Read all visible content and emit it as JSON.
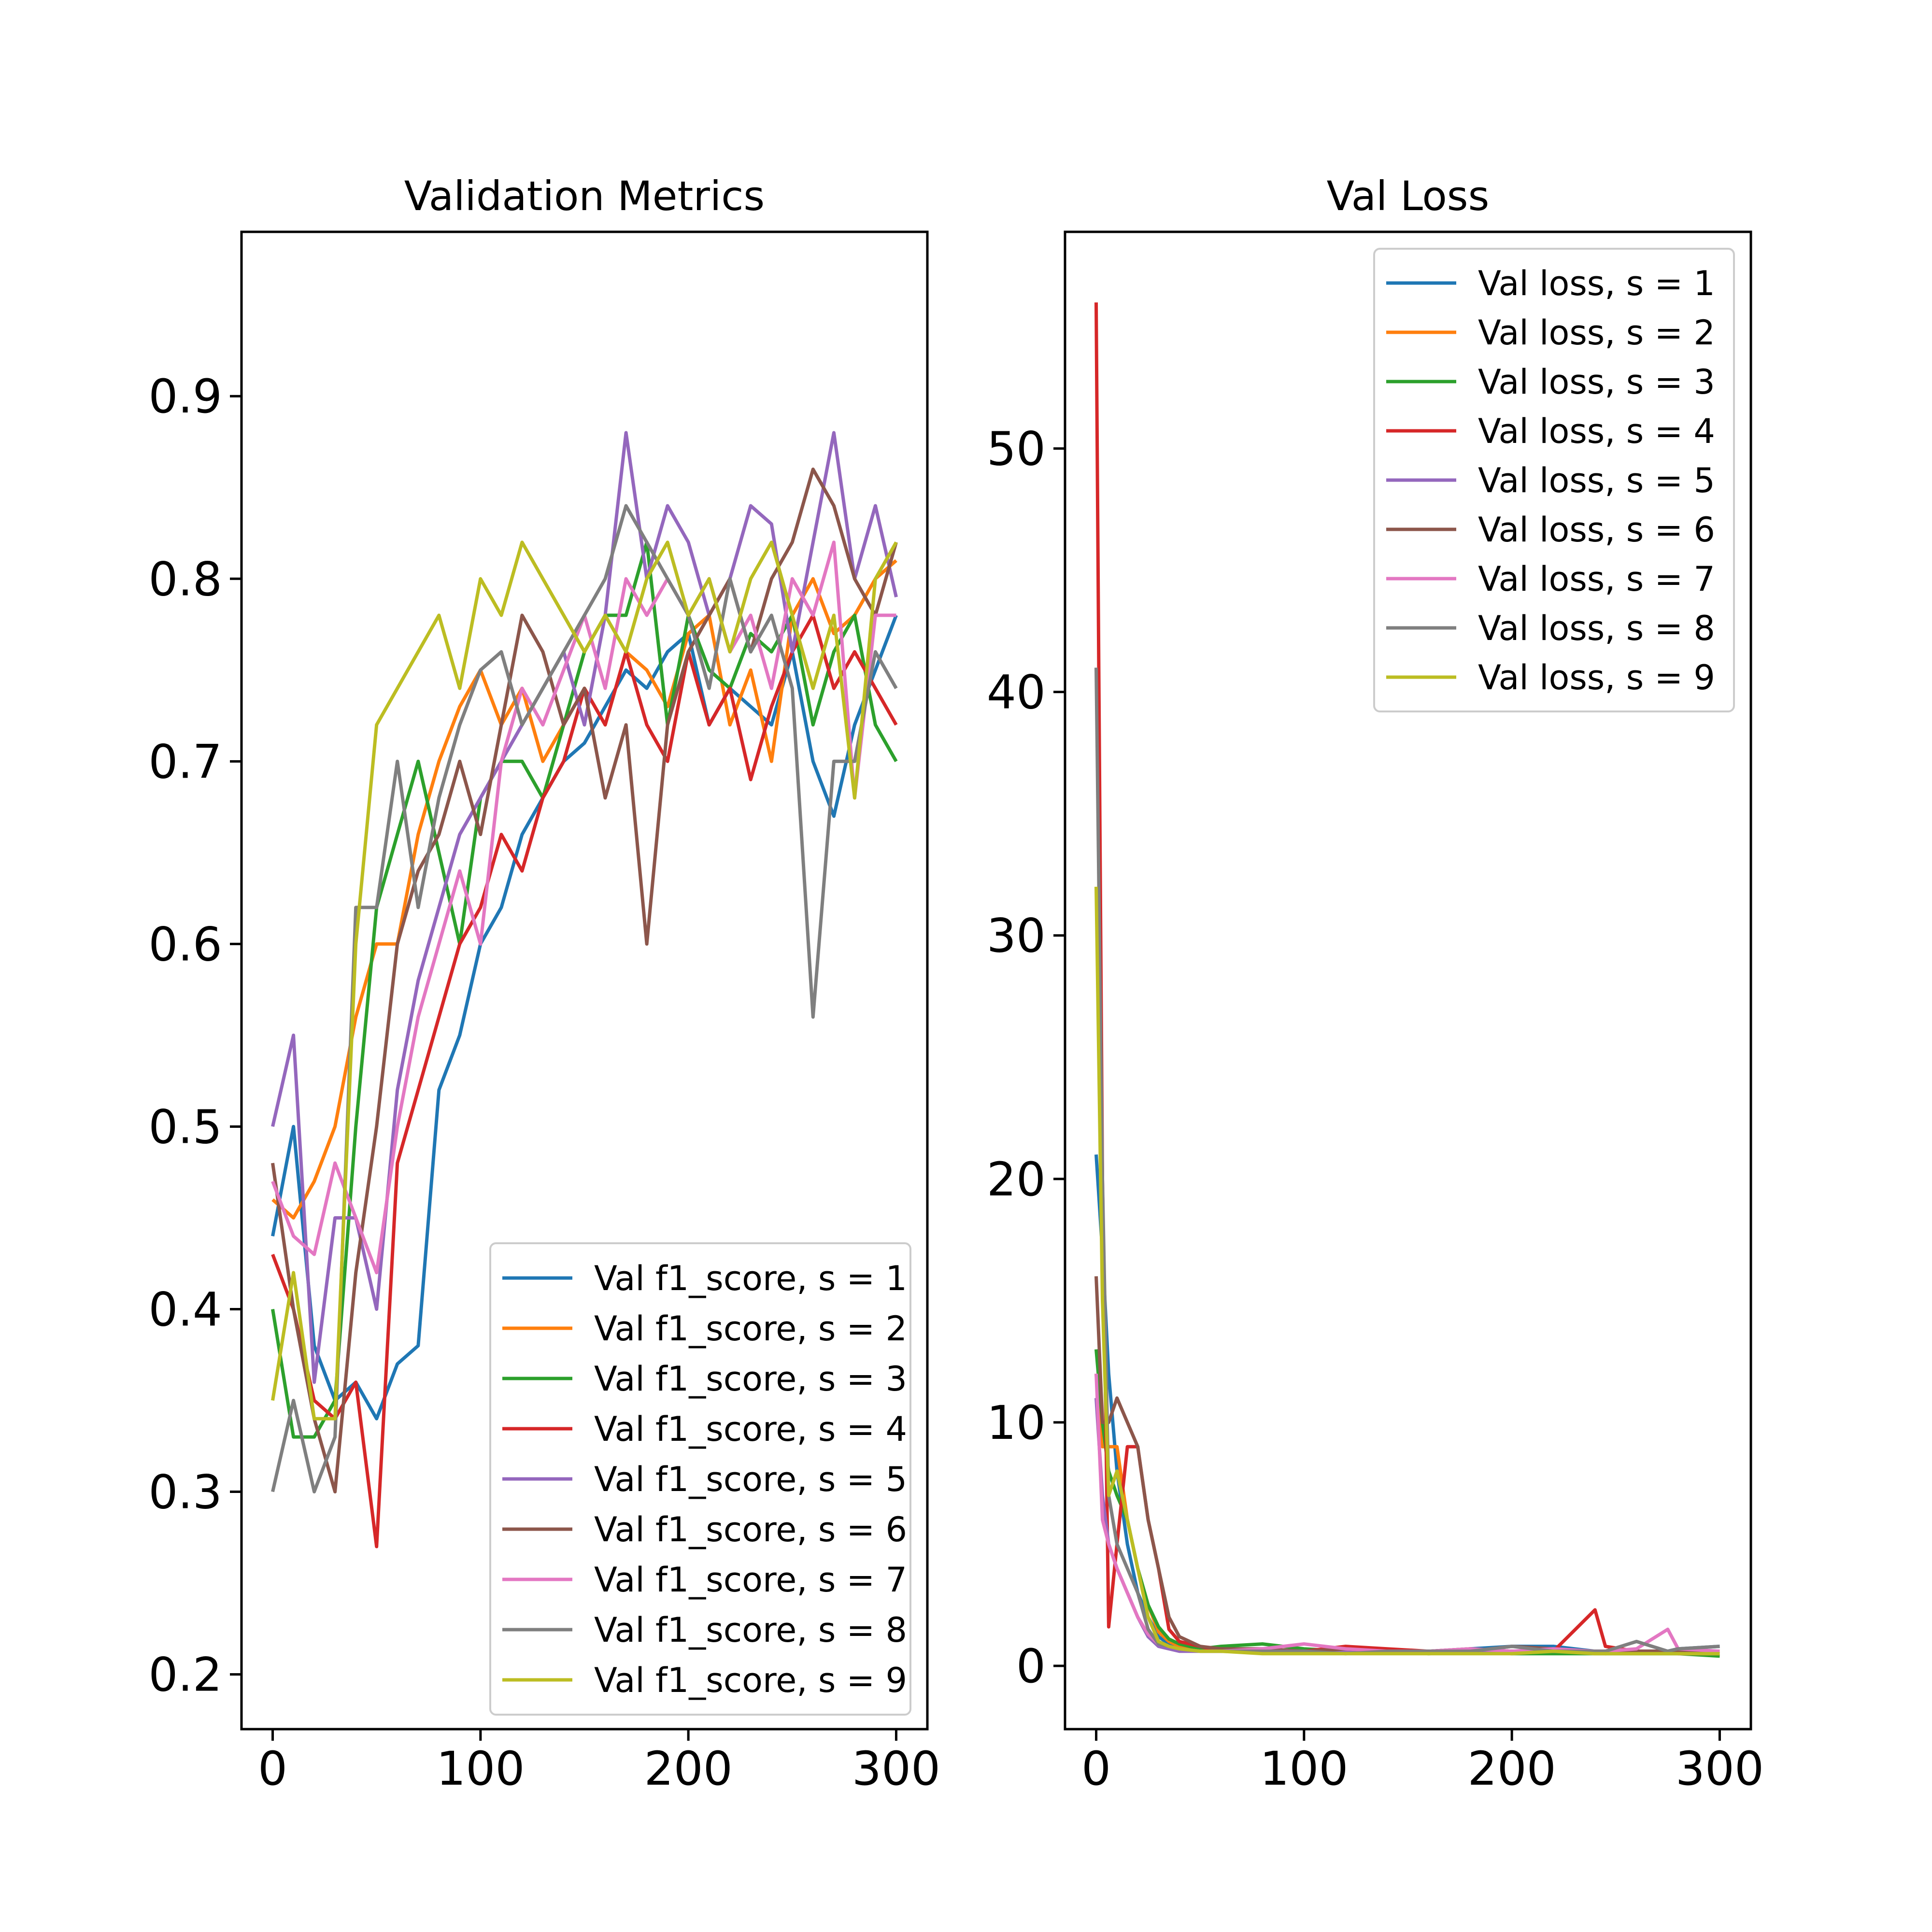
{
  "chart_data": [
    {
      "type": "line",
      "title": "Validation Metrics",
      "xlabel": "",
      "ylabel": "",
      "xlim": [
        -15,
        315
      ],
      "ylim": [
        0.17,
        0.99
      ],
      "xticks": [
        0,
        100,
        200,
        300
      ],
      "xtick_labels": [
        "0",
        "100",
        "200",
        "300"
      ],
      "yticks": [
        0.2,
        0.3,
        0.4,
        0.5,
        0.6,
        0.7,
        0.8,
        0.9
      ],
      "ytick_labels": [
        "0.2",
        "0.3",
        "0.4",
        "0.5",
        "0.6",
        "0.7",
        "0.8",
        "0.9"
      ],
      "grid": false,
      "legend_position": "lower-right",
      "x": [
        0,
        10,
        20,
        30,
        40,
        50,
        60,
        70,
        80,
        90,
        100,
        110,
        120,
        130,
        140,
        150,
        160,
        170,
        180,
        190,
        200,
        210,
        220,
        230,
        240,
        250,
        260,
        270,
        280,
        290,
        300
      ],
      "series": [
        {
          "name": "Val f1_score, s = 1",
          "color": "#1f77b4",
          "values": [
            0.44,
            0.5,
            0.38,
            0.35,
            0.36,
            0.34,
            0.37,
            0.38,
            0.52,
            0.55,
            0.6,
            0.62,
            0.66,
            0.68,
            0.7,
            0.71,
            0.73,
            0.75,
            0.74,
            0.76,
            0.77,
            0.72,
            0.74,
            0.73,
            0.72,
            0.76,
            0.7,
            0.67,
            0.72,
            0.75,
            0.78
          ]
        },
        {
          "name": "Val f1_score, s = 2",
          "color": "#ff7f0e",
          "values": [
            0.46,
            0.45,
            0.47,
            0.5,
            0.56,
            0.6,
            0.6,
            0.66,
            0.7,
            0.73,
            0.75,
            0.72,
            0.74,
            0.7,
            0.72,
            0.74,
            0.72,
            0.76,
            0.75,
            0.73,
            0.77,
            0.78,
            0.72,
            0.75,
            0.7,
            0.78,
            0.8,
            0.77,
            0.78,
            0.8,
            0.81
          ]
        },
        {
          "name": "Val f1_score, s = 3",
          "color": "#2ca02c",
          "values": [
            0.4,
            0.33,
            0.33,
            0.35,
            0.5,
            0.62,
            0.66,
            0.7,
            0.65,
            0.6,
            0.68,
            0.7,
            0.7,
            0.68,
            0.72,
            0.76,
            0.78,
            0.78,
            0.82,
            0.72,
            0.78,
            0.75,
            0.74,
            0.77,
            0.76,
            0.78,
            0.72,
            0.76,
            0.78,
            0.72,
            0.7
          ]
        },
        {
          "name": "Val f1_score, s = 4",
          "color": "#d62728",
          "values": [
            0.43,
            0.4,
            0.35,
            0.34,
            0.36,
            0.27,
            0.48,
            0.52,
            0.56,
            0.6,
            0.62,
            0.66,
            0.64,
            0.68,
            0.7,
            0.74,
            0.72,
            0.76,
            0.72,
            0.7,
            0.76,
            0.72,
            0.74,
            0.69,
            0.73,
            0.76,
            0.78,
            0.74,
            0.76,
            0.74,
            0.72
          ]
        },
        {
          "name": "Val f1_score, s = 5",
          "color": "#9467bd",
          "values": [
            0.5,
            0.55,
            0.36,
            0.45,
            0.45,
            0.4,
            0.52,
            0.58,
            0.62,
            0.66,
            0.68,
            0.7,
            0.72,
            0.74,
            0.76,
            0.72,
            0.78,
            0.88,
            0.8,
            0.84,
            0.82,
            0.78,
            0.8,
            0.84,
            0.83,
            0.76,
            0.82,
            0.88,
            0.8,
            0.84,
            0.79
          ]
        },
        {
          "name": "Val f1_score, s = 6",
          "color": "#8c564b",
          "values": [
            0.48,
            0.4,
            0.34,
            0.3,
            0.42,
            0.5,
            0.6,
            0.64,
            0.66,
            0.7,
            0.66,
            0.72,
            0.78,
            0.76,
            0.72,
            0.74,
            0.68,
            0.72,
            0.6,
            0.72,
            0.76,
            0.78,
            0.8,
            0.76,
            0.8,
            0.82,
            0.86,
            0.84,
            0.8,
            0.78,
            0.82
          ]
        },
        {
          "name": "Val f1_score, s = 7",
          "color": "#e377c2",
          "values": [
            0.47,
            0.44,
            0.43,
            0.48,
            0.45,
            0.42,
            0.5,
            0.56,
            0.6,
            0.64,
            0.6,
            0.7,
            0.74,
            0.72,
            0.75,
            0.78,
            0.74,
            0.8,
            0.78,
            0.8,
            0.78,
            0.8,
            0.76,
            0.78,
            0.74,
            0.8,
            0.78,
            0.82,
            0.68,
            0.78,
            0.78
          ]
        },
        {
          "name": "Val f1_score, s = 8",
          "color": "#7f7f7f",
          "values": [
            0.3,
            0.35,
            0.3,
            0.33,
            0.62,
            0.62,
            0.7,
            0.62,
            0.68,
            0.72,
            0.75,
            0.76,
            0.72,
            0.74,
            0.76,
            0.78,
            0.8,
            0.84,
            0.82,
            0.8,
            0.78,
            0.74,
            0.8,
            0.76,
            0.78,
            0.74,
            0.56,
            0.7,
            0.7,
            0.76,
            0.74
          ]
        },
        {
          "name": "Val f1_score, s = 9",
          "color": "#bcbd22",
          "values": [
            0.35,
            0.42,
            0.34,
            0.34,
            0.6,
            0.72,
            0.74,
            0.76,
            0.78,
            0.74,
            0.8,
            0.78,
            0.82,
            0.8,
            0.78,
            0.76,
            0.78,
            0.76,
            0.8,
            0.82,
            0.78,
            0.8,
            0.76,
            0.8,
            0.82,
            0.78,
            0.74,
            0.78,
            0.68,
            0.8,
            0.82
          ]
        }
      ]
    },
    {
      "type": "line",
      "title": "Val Loss",
      "xlabel": "",
      "ylabel": "",
      "xlim": [
        -15,
        315
      ],
      "ylim": [
        -2.6,
        58.9
      ],
      "xticks": [
        0,
        100,
        200,
        300
      ],
      "xtick_labels": [
        "0",
        "100",
        "200",
        "300"
      ],
      "yticks": [
        0,
        10,
        20,
        30,
        40,
        50
      ],
      "ytick_labels": [
        "0",
        "10",
        "20",
        "30",
        "40",
        "50"
      ],
      "grid": false,
      "legend_position": "upper-right",
      "x": [
        0,
        3,
        6,
        10,
        15,
        20,
        25,
        30,
        35,
        40,
        50,
        60,
        80,
        100,
        120,
        140,
        160,
        180,
        200,
        220,
        240,
        245,
        260,
        275,
        280,
        300
      ],
      "series": [
        {
          "name": "Val loss, s = 1",
          "color": "#1f77b4",
          "values": [
            21,
            17,
            12,
            8,
            5,
            3,
            2,
            1.2,
            0.9,
            0.8,
            0.7,
            0.7,
            0.6,
            0.6,
            0.7,
            0.6,
            0.6,
            0.7,
            0.8,
            0.8,
            0.6,
            0.6,
            0.6,
            0.6,
            0.7,
            0.8
          ]
        },
        {
          "name": "Val loss, s = 2",
          "color": "#ff7f0e",
          "values": [
            12,
            9,
            9,
            9,
            6,
            4,
            2.5,
            1.4,
            1.0,
            0.8,
            0.7,
            0.7,
            0.6,
            0.6,
            0.6,
            0.6,
            0.6,
            0.6,
            0.6,
            0.6,
            0.6,
            0.5,
            0.6,
            0.6,
            0.6,
            0.6
          ]
        },
        {
          "name": "Val loss, s = 3",
          "color": "#2ca02c",
          "values": [
            13,
            10,
            8,
            7,
            6,
            4,
            2.5,
            1.6,
            1.1,
            0.9,
            0.7,
            0.8,
            0.9,
            0.7,
            0.6,
            0.6,
            0.5,
            0.6,
            0.5,
            0.5,
            0.5,
            0.5,
            0.5,
            0.5,
            0.5,
            0.4
          ]
        },
        {
          "name": "Val loss, s = 4",
          "color": "#d62728",
          "values": [
            56,
            20,
            1.6,
            5,
            9,
            9,
            6,
            4,
            1.5,
            1.0,
            0.8,
            0.6,
            0.6,
            0.6,
            0.8,
            0.7,
            0.6,
            0.7,
            0.6,
            0.6,
            2.3,
            0.8,
            0.6,
            0.6,
            0.5,
            0.5
          ]
        },
        {
          "name": "Val loss, s = 5",
          "color": "#9467bd",
          "values": [
            11,
            7,
            5,
            4,
            3,
            2,
            1.2,
            0.8,
            0.7,
            0.6,
            0.6,
            0.6,
            0.6,
            0.6,
            0.6,
            0.6,
            0.6,
            0.6,
            0.6,
            0.6,
            0.6,
            0.6,
            0.6,
            0.6,
            0.5,
            0.5
          ]
        },
        {
          "name": "Val loss, s = 6",
          "color": "#8c564b",
          "values": [
            16,
            10,
            10,
            11,
            10,
            9,
            6,
            4,
            2,
            1.2,
            0.8,
            0.7,
            0.7,
            0.6,
            0.7,
            0.6,
            0.6,
            0.6,
            0.8,
            0.7,
            0.6,
            0.6,
            0.6,
            0.6,
            0.6,
            0.5
          ]
        },
        {
          "name": "Val loss, s = 7",
          "color": "#e377c2",
          "values": [
            12,
            6,
            5,
            4,
            3,
            2,
            1.3,
            0.9,
            0.8,
            0.7,
            0.6,
            0.6,
            0.7,
            0.9,
            0.7,
            0.6,
            0.6,
            0.7,
            0.6,
            0.7,
            0.6,
            0.6,
            0.7,
            1.5,
            0.7,
            0.6
          ]
        },
        {
          "name": "Val loss, s = 8",
          "color": "#7f7f7f",
          "values": [
            41,
            20,
            7,
            5,
            4,
            3,
            1.5,
            0.9,
            0.8,
            0.7,
            0.6,
            0.6,
            0.6,
            0.6,
            0.5,
            0.6,
            0.6,
            0.6,
            0.8,
            0.6,
            0.6,
            0.6,
            1.0,
            0.6,
            0.7,
            0.8
          ]
        },
        {
          "name": "Val loss, s = 9",
          "color": "#bcbd22",
          "values": [
            32,
            15,
            7,
            8,
            6,
            4,
            2,
            1.0,
            0.8,
            0.7,
            0.6,
            0.6,
            0.5,
            0.5,
            0.5,
            0.5,
            0.5,
            0.5,
            0.5,
            0.6,
            0.5,
            0.5,
            0.5,
            0.5,
            0.5,
            0.5
          ]
        }
      ]
    }
  ]
}
